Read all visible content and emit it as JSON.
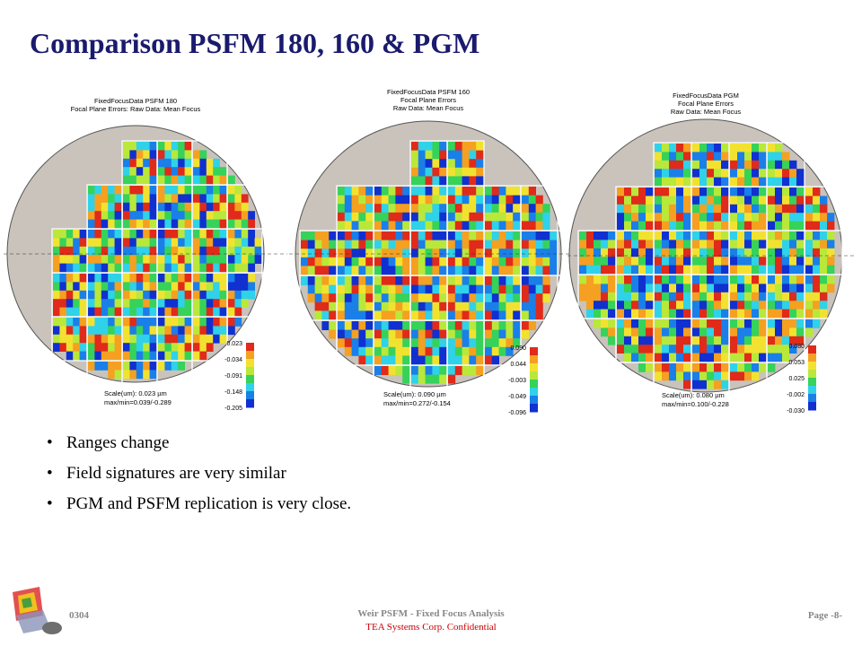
{
  "title": "Comparison  PSFM 180, 160 & PGM",
  "panels": [
    {
      "header": [
        "FixedFocusData PSFM 180",
        "Focal Plane Errors: Raw Data: Mean Focus"
      ],
      "scale": "Scale(um): 0.023 µm",
      "maxmin": "max/min=0.039/-0.289",
      "colorbar": [
        "0.023",
        "-0.034",
        "-0.091",
        "-0.148",
        "-0.205"
      ]
    },
    {
      "header": [
        "FixedFocusData PSFM 160",
        "Focal Plane Errors",
        "Raw Data: Mean Focus"
      ],
      "scale": "Scale(um): 0.090 µm",
      "maxmin": "max/min=0.272/-0.154",
      "colorbar": [
        "0.090",
        "0.044",
        "-0.003",
        "-0.049",
        "-0.096"
      ]
    },
    {
      "header": [
        "FixedFocusData PGM",
        "Focal Plane Errors",
        "Raw Data: Mean Focus"
      ],
      "scale": "Scale(um): 0.080 µm",
      "maxmin": "max/min=0.100/-0.228",
      "colorbar": [
        "0.080",
        "0.053",
        "0.025",
        "-0.002",
        "-0.030"
      ]
    }
  ],
  "bullets": [
    "Ranges change",
    "Field signatures are very similar",
    "PGM and PSFM replication is very close."
  ],
  "bullet_symbol": "•",
  "footer": {
    "code": "0304",
    "center_line1": "Weir PSFM - Fixed Focus Analysis",
    "center_line2": "TEA Systems Corp. Confidential",
    "page": "Page -8-"
  },
  "colors": {
    "title": "#1a1a6e",
    "wafer": "#c9c3bc",
    "confidential": "#cc0000"
  }
}
